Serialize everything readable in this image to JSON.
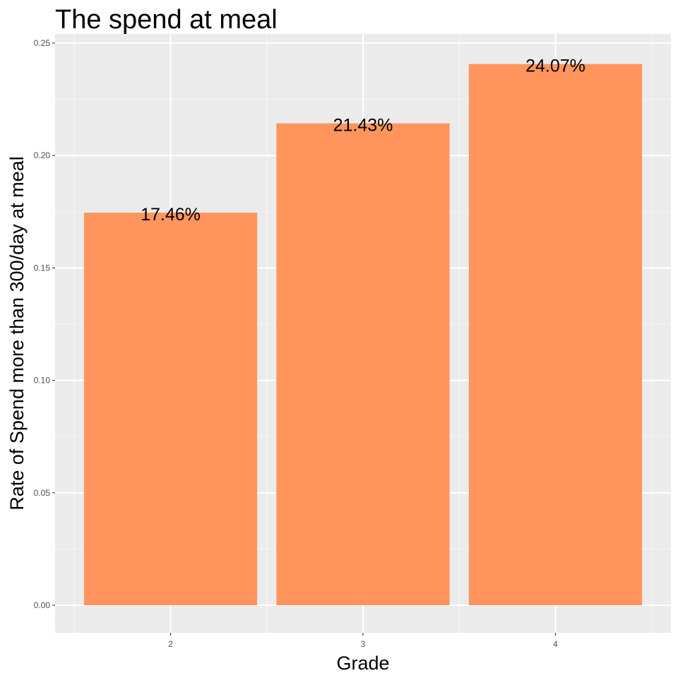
{
  "chart_data": {
    "type": "bar",
    "title": "The spend at meal",
    "xlabel": "Grade",
    "ylabel": "Rate of Spend more than 300/day at meal",
    "categories": [
      "2",
      "3",
      "4"
    ],
    "values": [
      0.1746,
      0.2143,
      0.2407
    ],
    "data_labels": [
      "17.46%",
      "21.43%",
      "24.07%"
    ],
    "ylim": [
      0,
      0.25
    ],
    "yticks": [
      0.0,
      0.05,
      0.1,
      0.15,
      0.2,
      0.25
    ],
    "ytick_labels": [
      "0.00",
      "0.05",
      "0.10",
      "0.15",
      "0.20",
      "0.25"
    ],
    "grid": true,
    "colors": {
      "bar": "#FF955C",
      "panel": "#EBEBEB",
      "grid_major": "#FFFFFF",
      "grid_minor": "#F5F5F5",
      "tick": "#333333"
    }
  }
}
